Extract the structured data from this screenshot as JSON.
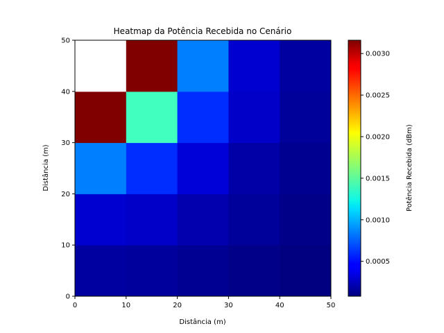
{
  "chart_data": {
    "type": "heatmap",
    "title": "Heatmap da Potência Recebida no Cenário",
    "xlabel": "Distância (m)",
    "ylabel": "Distância (m)",
    "xlim": [
      0,
      50
    ],
    "ylim": [
      0,
      50
    ],
    "x_ticks": [
      0,
      10,
      20,
      30,
      40,
      50
    ],
    "y_ticks": [
      0,
      10,
      20,
      30,
      40,
      50
    ],
    "x_edges": [
      0,
      10,
      20,
      30,
      40,
      50
    ],
    "y_edges": [
      0,
      10,
      20,
      30,
      40,
      50
    ],
    "rows_bottom_to_top": [
      [
        0.00018,
        0.00017,
        0.00014,
        0.00011,
        8e-05
      ],
      [
        0.00032,
        0.0003,
        0.00022,
        0.00016,
        0.00011
      ],
      [
        0.00085,
        0.0006,
        0.00035,
        0.0002,
        0.00013
      ],
      [
        0.00316,
        0.00143,
        0.0006,
        0.0003,
        0.00016
      ],
      [
        null,
        0.00316,
        0.00085,
        0.00032,
        0.00018
      ]
    ],
    "colormap": "jet",
    "colorbar": {
      "label": "Potência Recebida (dBm)",
      "vmin": 8e-05,
      "vmax": 0.00316,
      "ticks": [
        0.0005,
        0.001,
        0.0015,
        0.002,
        0.0025,
        0.003
      ],
      "tick_labels": [
        "0.0005",
        "0.0010",
        "0.0015",
        "0.0020",
        "0.0025",
        "0.0030"
      ]
    },
    "grid": false,
    "missing_cell_color": "#ffffff"
  }
}
